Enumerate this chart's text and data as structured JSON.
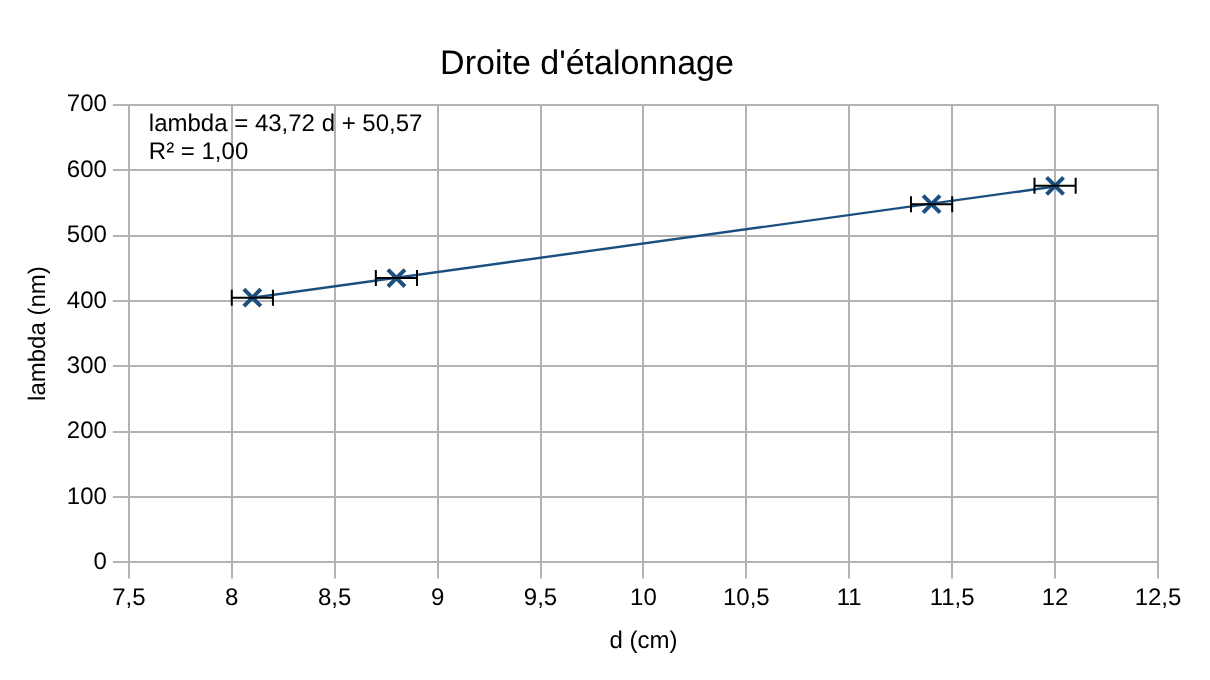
{
  "chart_data": {
    "type": "scatter",
    "title": "Droite d'étalonnage",
    "xlabel": "d (cm)",
    "ylabel": "lambda (nm)",
    "annotations": [
      "lambda = 43,72 d + 50,57",
      "R² = 1,00"
    ],
    "x": [
      8.1,
      8.8,
      11.4,
      12.0
    ],
    "series": [
      {
        "type": "scatter",
        "color": "#1b4f80",
        "values": [
          405,
          435,
          548,
          576
        ],
        "xerrors": [
          0.1,
          0.1,
          0.1,
          0.1
        ],
        "marker": "cross"
      },
      {
        "type": "line",
        "color": "#1b4f80",
        "x": [
          8.1,
          12.0
        ],
        "values": [
          405,
          575
        ],
        "marker": "none"
      }
    ],
    "xlim": [
      7.5,
      12.5
    ],
    "xticks": [
      {
        "value": 7.5,
        "label": "7,5"
      },
      8,
      {
        "value": 8.5,
        "label": "8,5"
      },
      9,
      {
        "value": 9.5,
        "label": "9,5"
      },
      10,
      {
        "value": 10.5,
        "label": "10,5"
      },
      11,
      {
        "value": 11.5,
        "label": "11,5"
      },
      12,
      {
        "value": 12.5,
        "label": "12,5"
      }
    ],
    "ylim": [
      0,
      700
    ],
    "yticks": [
      0,
      100,
      200,
      300,
      400,
      500,
      600,
      700
    ],
    "grid": true,
    "legend": false
  }
}
